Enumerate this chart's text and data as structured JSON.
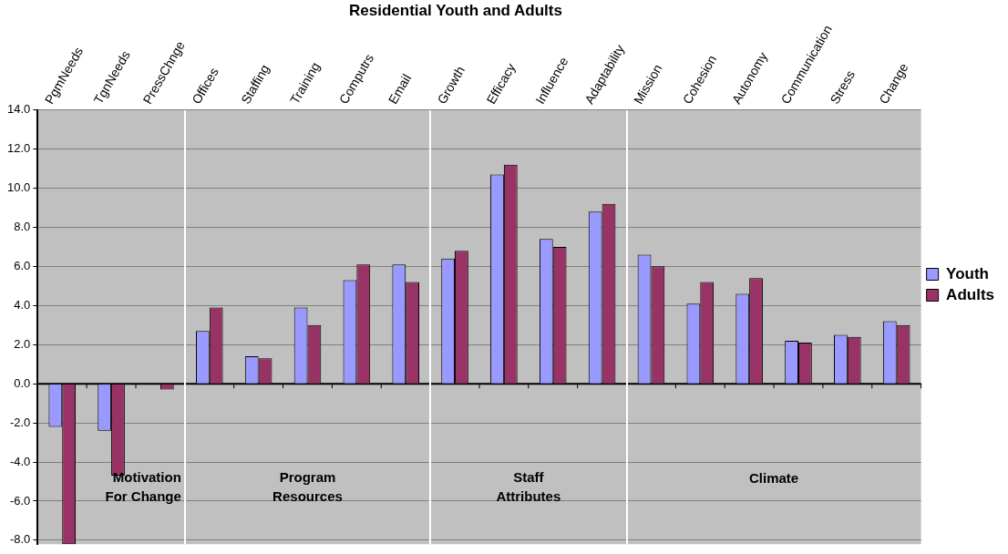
{
  "chart_data": {
    "type": "bar",
    "title": "Residential Youth and Adults",
    "categories": [
      "PgmNeeds",
      "TgnNeeds",
      "PressChnge",
      "Offices",
      "Staffing",
      "Training",
      "Computrs",
      "Email",
      "Growth",
      "Efficacy",
      "Influence",
      "Adaptability",
      "Mission",
      "Cohesion",
      "Autonomy",
      "Communication",
      "Stress",
      "Change"
    ],
    "series": [
      {
        "name": "Youth",
        "color": "#9999ff",
        "values": [
          -2.2,
          -2.4,
          0,
          2.7,
          1.4,
          3.9,
          5.3,
          6.1,
          6.4,
          10.7,
          7.4,
          8.8,
          6.6,
          4.1,
          4.6,
          2.2,
          2.5,
          3.2
        ]
      },
      {
        "name": "Adults",
        "color": "#993366",
        "values": [
          -8.2,
          -4.7,
          -0.3,
          3.9,
          1.3,
          3.0,
          6.1,
          5.2,
          6.8,
          11.2,
          7.0,
          9.2,
          6.0,
          5.2,
          5.4,
          2.1,
          2.4,
          3.0
        ]
      }
    ],
    "ylim": [
      -8.2,
      14
    ],
    "yticks": [
      {
        "value": -8,
        "label": "-8.0"
      },
      {
        "value": -6,
        "label": "-6.0"
      },
      {
        "value": -4,
        "label": "-4.0"
      },
      {
        "value": -2,
        "label": "-2.0"
      },
      {
        "value": 0,
        "label": "0.0"
      },
      {
        "value": 2,
        "label": "2.0"
      },
      {
        "value": 4,
        "label": "4.0"
      },
      {
        "value": 6,
        "label": "6.0"
      },
      {
        "value": 8,
        "label": "8.0"
      },
      {
        "value": 10,
        "label": "10.0"
      },
      {
        "value": 12,
        "label": "12.0"
      },
      {
        "value": 14,
        "label": "14.0"
      }
    ],
    "annotations": [
      "Motivation For Change",
      "Program Resources",
      "Staff Attributes",
      "Climate"
    ],
    "grid": "y",
    "legend": "right"
  }
}
